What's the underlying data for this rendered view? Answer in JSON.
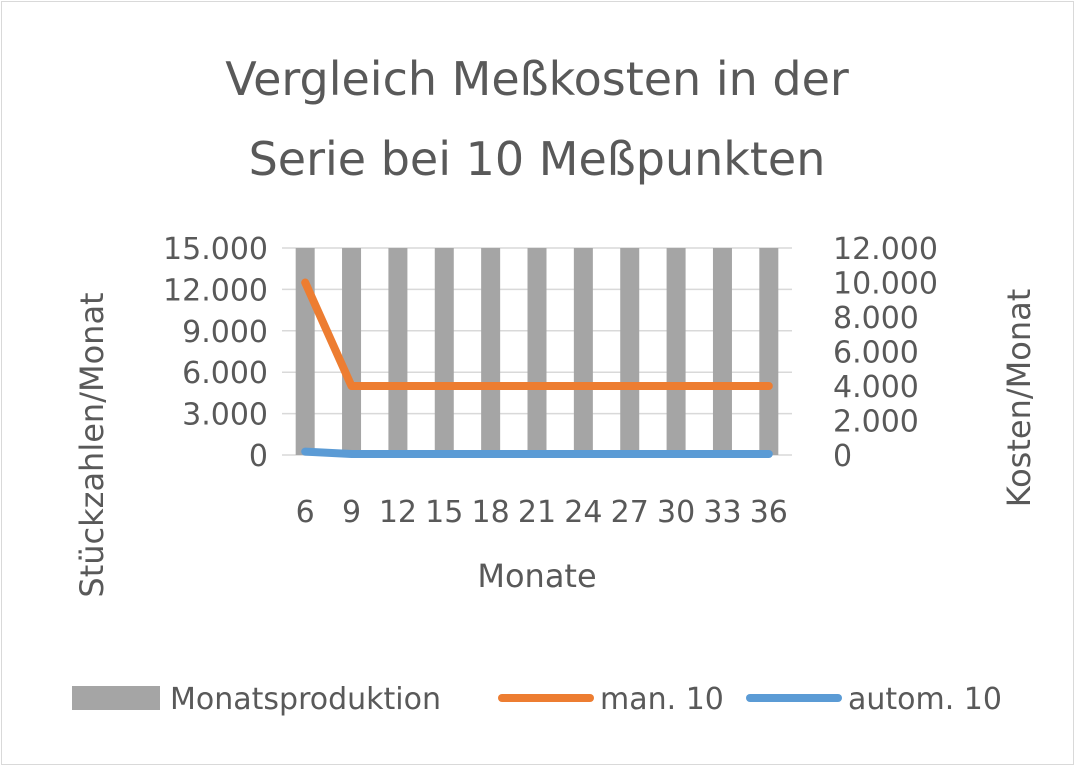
{
  "chart_data": {
    "type": "bar",
    "title_lines": [
      "Vergleich Meßkosten in der",
      "Serie bei 10 Meßpunkten"
    ],
    "xlabel": "Monate",
    "ylabel": "Stückzahlen/Monat",
    "y2label": "Kosten/Monat",
    "categories": [
      "6",
      "9",
      "12",
      "15",
      "18",
      "21",
      "24",
      "27",
      "30",
      "33",
      "36"
    ],
    "y_ticks": [
      "0",
      "3.000",
      "6.000",
      "9.000",
      "12.000",
      "15.000"
    ],
    "y2_ticks": [
      "0",
      "2.000",
      "4.000",
      "6.000",
      "8.000",
      "10.000",
      "12.000"
    ],
    "ylim": [
      0,
      15000
    ],
    "y2lim": [
      0,
      12000
    ],
    "grid": true,
    "legend_position": "bottom",
    "series": [
      {
        "name": "Monatsproduktion",
        "kind": "bar",
        "axis": "left",
        "color": "#a5a5a5",
        "values": [
          15000,
          15000,
          15000,
          15000,
          15000,
          15000,
          15000,
          15000,
          15000,
          15000,
          15000
        ]
      },
      {
        "name": "man. 10",
        "kind": "line",
        "axis": "right",
        "color": "#ed7d31",
        "values": [
          10000,
          4000,
          4000,
          4000,
          4000,
          4000,
          4000,
          4000,
          4000,
          4000,
          4000
        ]
      },
      {
        "name": "autom. 10",
        "kind": "line",
        "axis": "right",
        "color": "#5b9bd5",
        "values": [
          200,
          60,
          60,
          60,
          60,
          60,
          60,
          60,
          60,
          60,
          60
        ]
      }
    ]
  }
}
